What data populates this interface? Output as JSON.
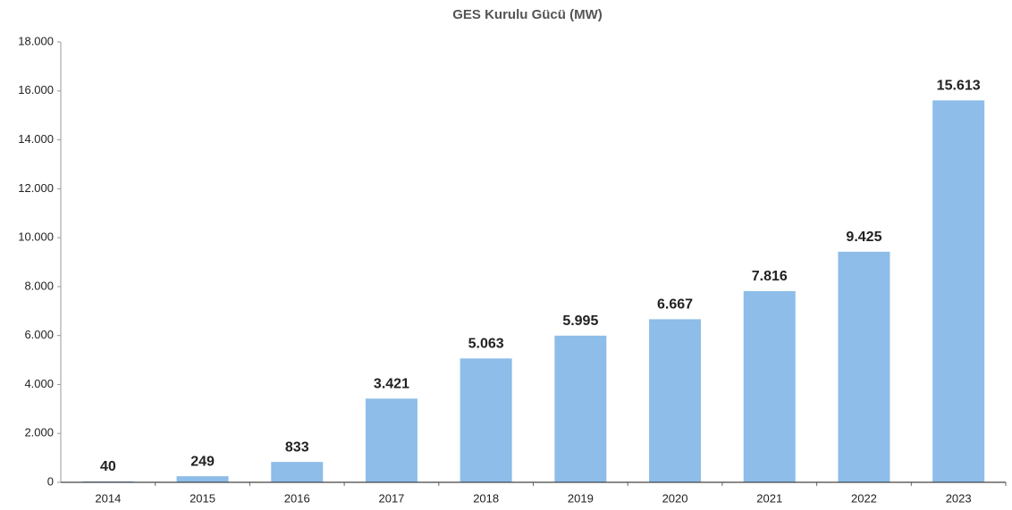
{
  "chart_data": {
    "type": "bar",
    "title": "GES Kurulu Gücü (MW)",
    "categories": [
      "2014",
      "2015",
      "2016",
      "2017",
      "2018",
      "2019",
      "2020",
      "2021",
      "2022",
      "2023"
    ],
    "values": [
      40,
      249,
      833,
      3421,
      5063,
      5995,
      6667,
      7816,
      9425,
      15613
    ],
    "value_labels": [
      "40",
      "249",
      "833",
      "3.421",
      "5.063",
      "5.995",
      "6.667",
      "7.816",
      "9.425",
      "15.613"
    ],
    "color": "#8dbde8",
    "ylim": [
      0,
      18000
    ],
    "yticks": [
      0,
      {
        "value": 2000,
        "label": "2.000"
      },
      {
        "value": 4000,
        "label": "4.000"
      },
      {
        "value": 6000,
        "label": "6.000"
      },
      {
        "value": 8000,
        "label": "8.000"
      },
      {
        "value": 10000,
        "label": "10.000"
      },
      {
        "value": 12000,
        "label": "12.000"
      },
      {
        "value": 14000,
        "label": "14.000"
      },
      {
        "value": 16000,
        "label": "16.000"
      },
      {
        "value": 18000,
        "label": "18.000"
      }
    ],
    "grid": false
  }
}
